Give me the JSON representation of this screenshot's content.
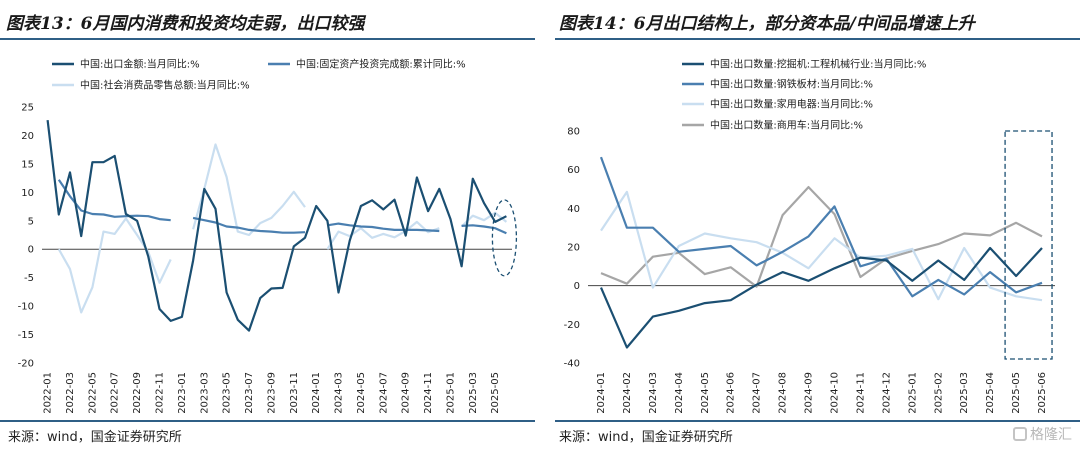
{
  "panels": [
    {
      "title": "图表13：6月国内消费和投资均走弱，出口较强",
      "source": "来源：wind，国金证券研究所"
    },
    {
      "title": "图表14：6月出口结构上，部分资本品/中间品增速上升",
      "source": "来源：wind，国金证券研究所"
    }
  ],
  "watermark": "格隆汇",
  "chart_data": [
    {
      "type": "line",
      "title": "",
      "xlabel": "",
      "ylabel": "",
      "ylim": [
        -20,
        25
      ],
      "yticks": [
        -20,
        -15,
        -10,
        -5,
        0,
        5,
        10,
        15,
        20,
        25
      ],
      "x": [
        "2022-01",
        "2022-02",
        "2022-03",
        "2022-04",
        "2022-05",
        "2022-06",
        "2022-07",
        "2022-08",
        "2022-09",
        "2022-10",
        "2022-11",
        "2022-12",
        "2023-01",
        "2023-02",
        "2023-03",
        "2023-04",
        "2023-05",
        "2023-06",
        "2023-07",
        "2023-08",
        "2023-09",
        "2023-10",
        "2023-11",
        "2023-12",
        "2024-01",
        "2024-02",
        "2024-03",
        "2024-04",
        "2024-05",
        "2024-06",
        "2024-07",
        "2024-08",
        "2024-09",
        "2024-10",
        "2024-11",
        "2024-12",
        "2025-01",
        "2025-02",
        "2025-03",
        "2025-04",
        "2025-05",
        "2025-06"
      ],
      "xtick_labels": [
        "2022-01",
        "2022-03",
        "2022-05",
        "2022-07",
        "2022-09",
        "2022-11",
        "2023-01",
        "2023-03",
        "2023-05",
        "2023-07",
        "2023-09",
        "2023-11",
        "2024-01",
        "2024-03",
        "2024-05",
        "2024-07",
        "2024-09",
        "2024-11",
        "2025-01",
        "2025-03",
        "2025-05"
      ],
      "legend": "top",
      "series": [
        {
          "name": "中国:出口金额:当月同比:%",
          "color": "#1b4f72",
          "values": [
            22.7,
            6.1,
            13.5,
            2.3,
            15.3,
            15.3,
            16.4,
            6.2,
            5.0,
            -1.3,
            -10.5,
            -12.6,
            -11.9,
            -2.0,
            10.6,
            7.1,
            -7.6,
            -12.4,
            -14.3,
            -8.6,
            -6.9,
            -6.8,
            0.5,
            2.0,
            7.6,
            5.0,
            -7.6,
            1.5,
            7.6,
            8.6,
            7.0,
            8.7,
            2.4,
            12.6,
            6.7,
            10.6,
            5.3,
            -3.0,
            12.4,
            8.1,
            4.8,
            5.8
          ]
        },
        {
          "name": "中国:固定资产投资完成额:累计同比:%",
          "color": "#4a7fb0",
          "values": [
            null,
            12.2,
            9.3,
            6.8,
            6.2,
            6.1,
            5.7,
            5.8,
            5.9,
            5.8,
            5.3,
            5.1,
            null,
            5.5,
            5.1,
            4.7,
            4.0,
            3.8,
            3.4,
            3.2,
            3.1,
            2.9,
            2.9,
            3.0,
            null,
            4.2,
            4.5,
            4.2,
            4.0,
            3.9,
            3.6,
            3.4,
            3.4,
            3.4,
            3.3,
            3.2,
            null,
            4.1,
            4.2,
            4.0,
            3.7,
            2.8
          ]
        },
        {
          "name": "中国:社会消费品零售总额:当月同比:%",
          "color": "#c9def0",
          "values": [
            null,
            0.0,
            -3.5,
            -11.1,
            -6.7,
            3.1,
            2.7,
            5.4,
            2.5,
            -0.5,
            -5.9,
            -1.8,
            null,
            3.5,
            10.6,
            18.4,
            12.7,
            3.1,
            2.5,
            4.6,
            5.5,
            7.6,
            10.1,
            7.4,
            null,
            0.0,
            3.1,
            2.3,
            3.7,
            2.0,
            2.7,
            2.1,
            3.2,
            4.8,
            3.0,
            3.7,
            null,
            4.0,
            5.9,
            5.1,
            6.4,
            4.8
          ]
        }
      ]
    },
    {
      "type": "line",
      "title": "",
      "xlabel": "",
      "ylabel": "",
      "ylim": [
        -40,
        80
      ],
      "yticks": [
        -40,
        -20,
        0,
        20,
        40,
        60,
        80
      ],
      "x": [
        "2024-01",
        "2024-02",
        "2024-03",
        "2024-04",
        "2024-05",
        "2024-06",
        "2024-07",
        "2024-08",
        "2024-09",
        "2024-10",
        "2024-11",
        "2024-12",
        "2025-01",
        "2025-02",
        "2025-03",
        "2025-04",
        "2025-05",
        "2025-06"
      ],
      "legend": "top-left",
      "series": [
        {
          "name": "中国:出口数量:挖掘机:工程机械行业:当月同比:%",
          "color": "#1b4f72",
          "values": [
            -1,
            -32,
            -16,
            -13,
            -9,
            -7.5,
            0.5,
            7,
            2.5,
            9,
            14.5,
            13,
            2.5,
            13,
            3,
            19.5,
            5,
            19.5
          ]
        },
        {
          "name": "中国:出口数量:钢铁板材:当月同比:%",
          "color": "#4a7fb0",
          "values": [
            66.5,
            30,
            30,
            17.5,
            19,
            20.5,
            10.5,
            17.5,
            25.5,
            41,
            10,
            14,
            -5.5,
            3,
            -4.5,
            7,
            -3.5,
            1.5
          ]
        },
        {
          "name": "中国:出口数量:家用电器:当月同比:%",
          "color": "#c9def0",
          "values": [
            28.5,
            48.5,
            -1,
            20.5,
            27,
            24.5,
            22.5,
            17,
            9,
            24.5,
            14.5,
            15.5,
            19,
            -7,
            19.5,
            -1,
            -5.5,
            -7.5
          ]
        },
        {
          "name": "中国:出口数量:商用车:当月同比:%",
          "color": "#a6a6a6",
          "values": [
            6.5,
            1,
            15,
            17,
            6,
            9.5,
            -0.5,
            36.5,
            51,
            37,
            4.5,
            14,
            18,
            21.5,
            27,
            26,
            32.5,
            25.5
          ]
        }
      ]
    }
  ]
}
